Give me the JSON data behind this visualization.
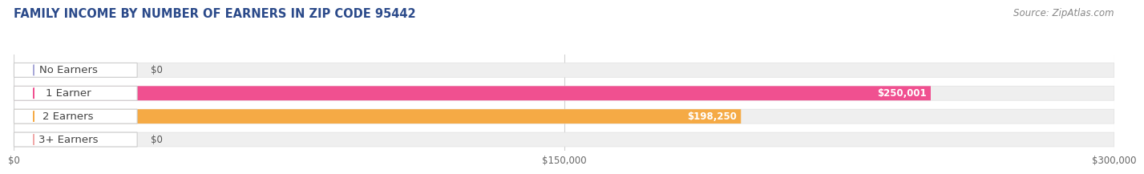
{
  "title": "FAMILY INCOME BY NUMBER OF EARNERS IN ZIP CODE 95442",
  "source": "Source: ZipAtlas.com",
  "categories": [
    "No Earners",
    "1 Earner",
    "2 Earners",
    "3+ Earners"
  ],
  "values": [
    0,
    250001,
    198250,
    0
  ],
  "stub_values": [
    3000,
    0,
    0,
    3000
  ],
  "xlim": [
    0,
    300000
  ],
  "bar_colors": [
    "#a8a8d8",
    "#f05090",
    "#f5aa45",
    "#f0a8a8"
  ],
  "bar_bg_color": "#efefef",
  "bar_bg_edge_color": "#e0e0e0",
  "value_labels": [
    "$0",
    "$250,001",
    "$198,250",
    "$0"
  ],
  "xtick_labels": [
    "$0",
    "$150,000",
    "$300,000"
  ],
  "xtick_values": [
    0,
    150000,
    300000
  ],
  "title_fontsize": 10.5,
  "source_fontsize": 8.5,
  "label_fontsize": 9.5,
  "value_fontsize": 8.5,
  "tick_fontsize": 8.5,
  "background_color": "#ffffff",
  "title_color": "#2b4a8a",
  "source_color": "#888888",
  "label_color": "#444444",
  "grid_color": "#d0d0d0",
  "tick_color": "#666666"
}
